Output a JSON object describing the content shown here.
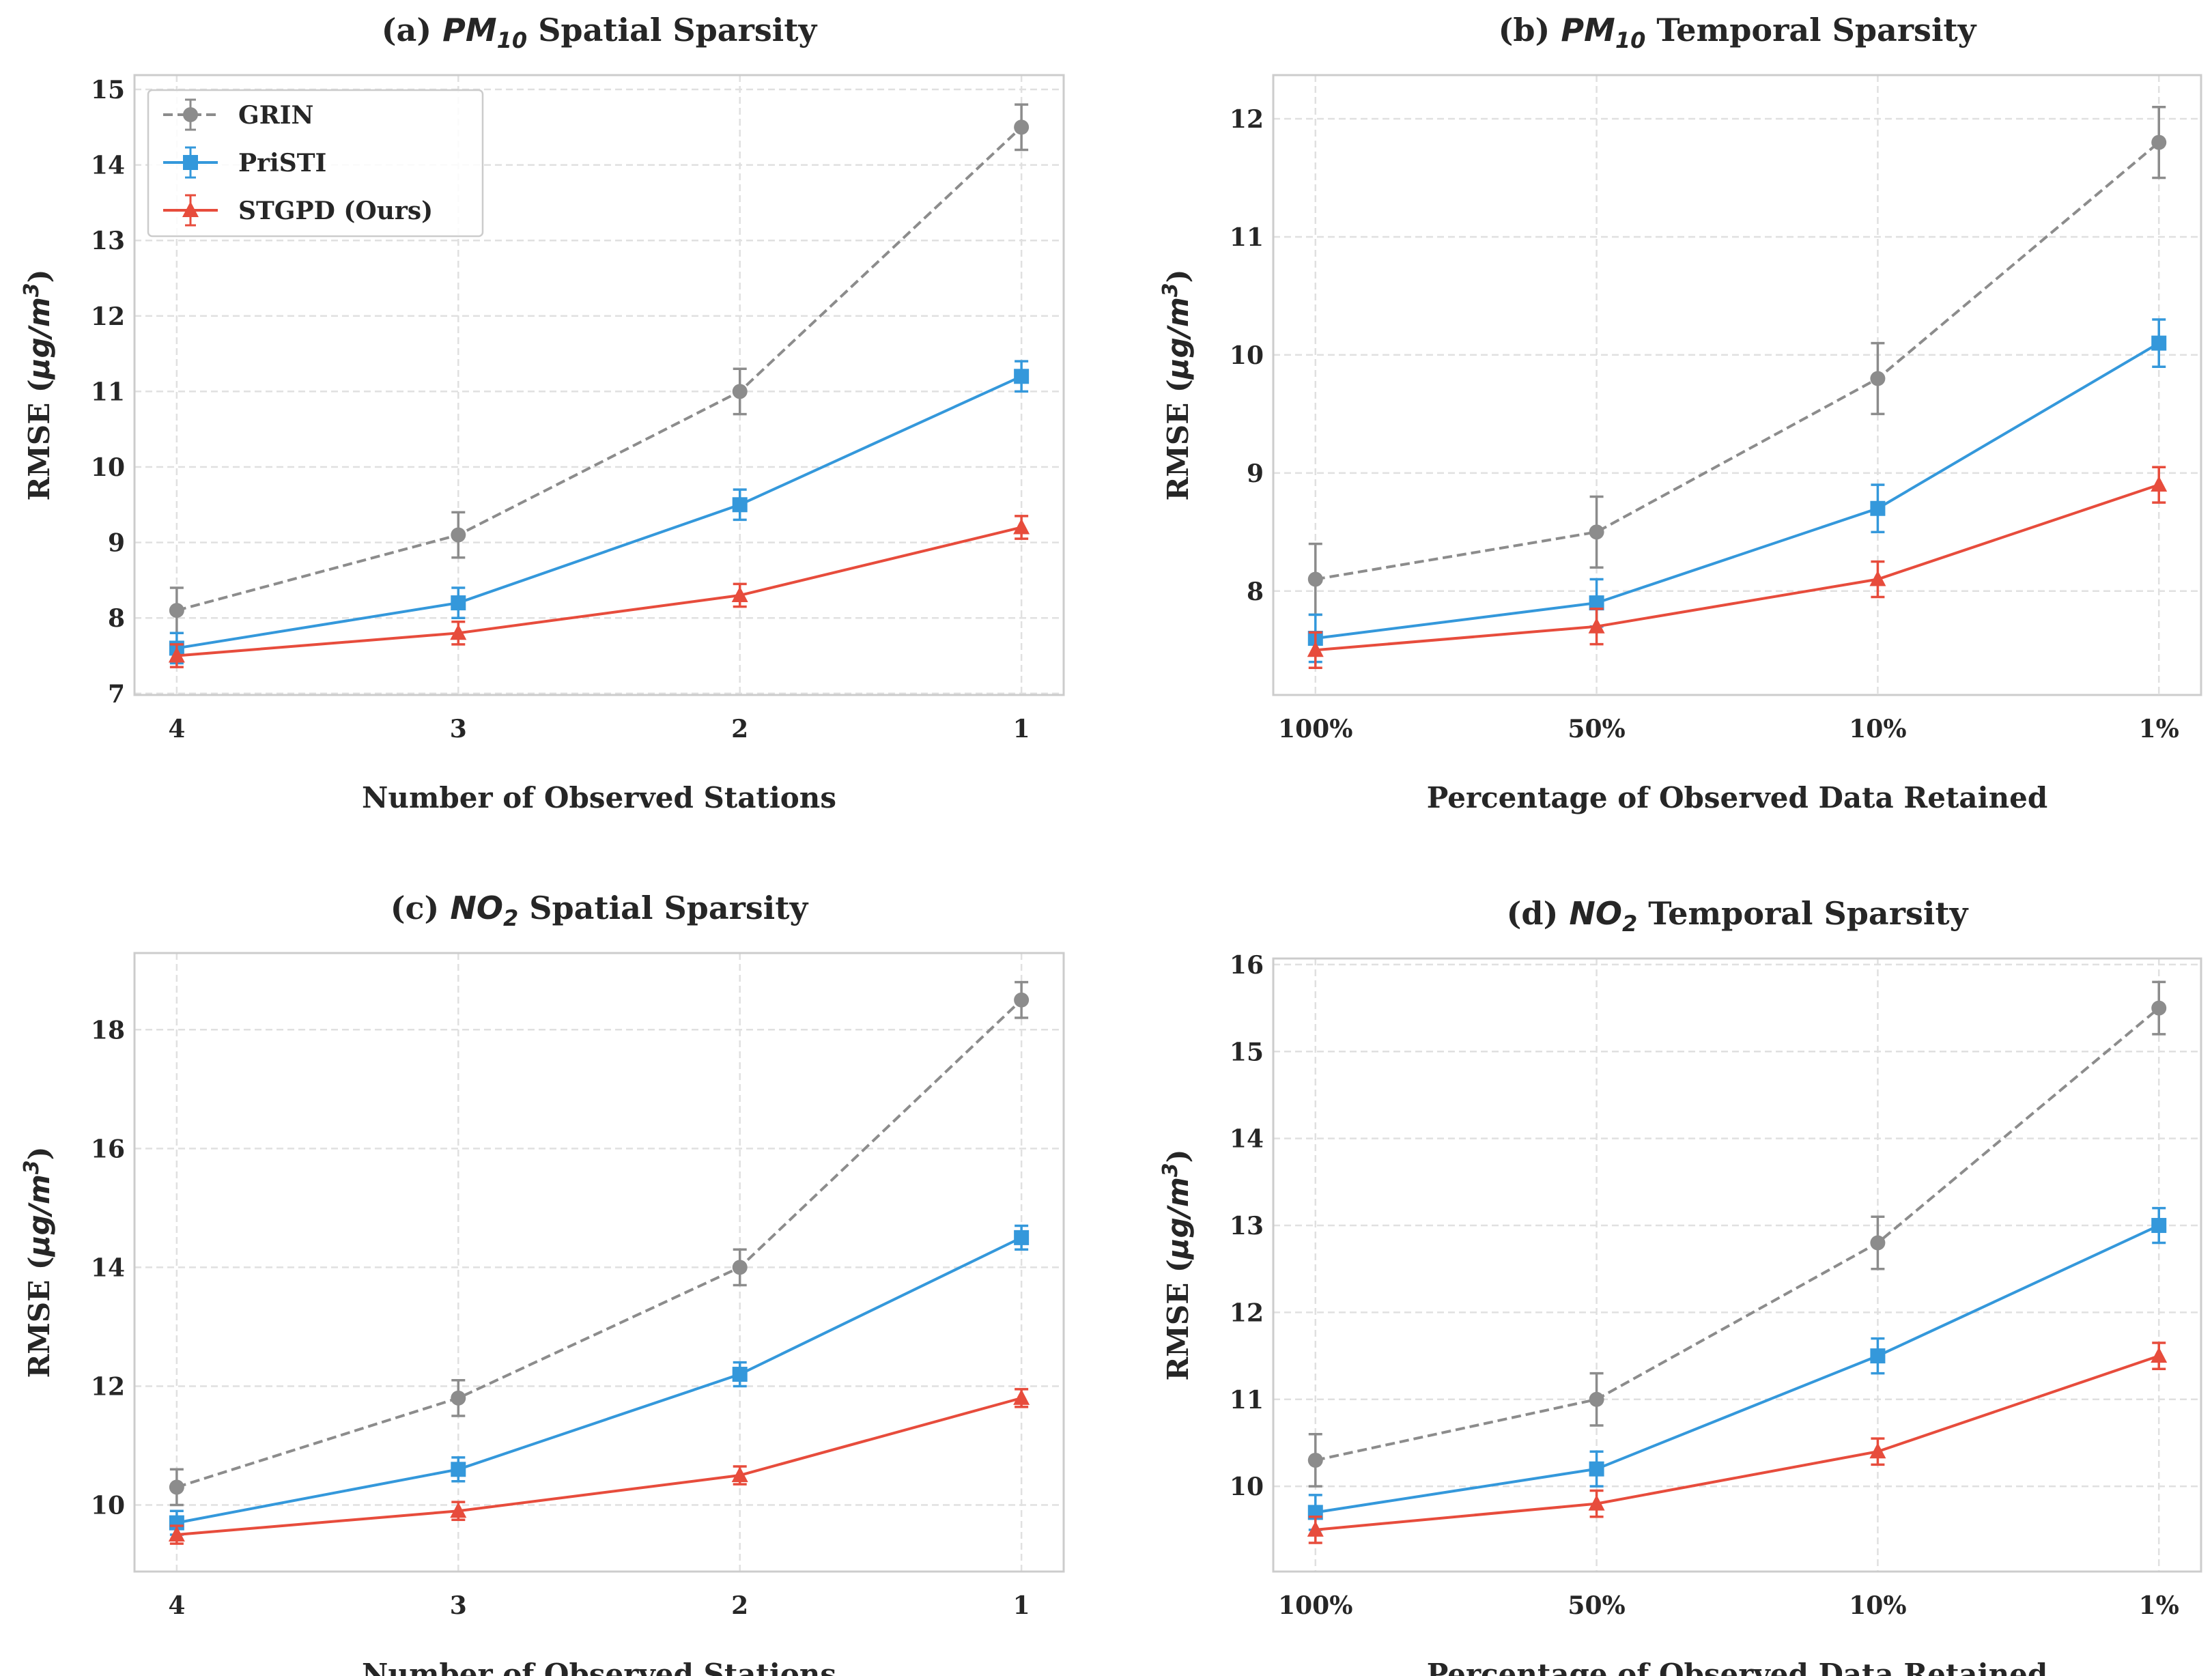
{
  "colors": {
    "GRIN": "#8c8c8c",
    "PriSTI": "#3498db",
    "STGPD (Ours)": "#e74c3c"
  },
  "legend": {
    "placement": "upper-left",
    "entries": [
      "GRIN",
      "PriSTI",
      "STGPD (Ours)"
    ]
  },
  "chart_data": [
    {
      "type": "line",
      "title": {
        "prefix": "(a) ",
        "math": "PM",
        "sub": "10",
        "suffix": " Spatial Sparsity"
      },
      "xlabel": "Number of Observed Stations",
      "ylabel": {
        "text": "RMSE (",
        "math": "μg/m",
        "sup": "3",
        "close": ")"
      },
      "categories": [
        "4",
        "3",
        "2",
        "1"
      ],
      "yticks": [
        7,
        8,
        9,
        10,
        11,
        12,
        13,
        14,
        15
      ],
      "ylim": [
        6.98,
        15.19
      ],
      "grid": true,
      "series": [
        {
          "name": "GRIN",
          "marker": "circle",
          "dashed": true,
          "values": [
            8.1,
            9.1,
            11.0,
            14.5
          ],
          "errors": [
            0.3,
            0.3,
            0.3,
            0.3
          ]
        },
        {
          "name": "PriSTI",
          "marker": "square",
          "dashed": false,
          "values": [
            7.6,
            8.2,
            9.5,
            11.2
          ],
          "errors": [
            0.2,
            0.2,
            0.2,
            0.2
          ]
        },
        {
          "name": "STGPD (Ours)",
          "marker": "triangle",
          "dashed": false,
          "values": [
            7.5,
            7.8,
            8.3,
            9.2
          ],
          "errors": [
            0.15,
            0.15,
            0.15,
            0.15
          ]
        }
      ]
    },
    {
      "type": "line",
      "title": {
        "prefix": "(b) ",
        "math": "PM",
        "sub": "10",
        "suffix": " Temporal Sparsity"
      },
      "xlabel": "Percentage of Observed Data Retained",
      "ylabel": {
        "text": "RMSE (",
        "math": "μg/m",
        "sup": "3",
        "close": ")"
      },
      "categories": [
        "100%",
        "50%",
        "10%",
        "1%"
      ],
      "yticks": [
        8,
        9,
        10,
        11,
        12
      ],
      "ylim": [
        7.12,
        12.37
      ],
      "grid": true,
      "series": [
        {
          "name": "GRIN",
          "marker": "circle",
          "dashed": true,
          "values": [
            8.1,
            8.5,
            9.8,
            11.8
          ],
          "errors": [
            0.3,
            0.3,
            0.3,
            0.3
          ]
        },
        {
          "name": "PriSTI",
          "marker": "square",
          "dashed": false,
          "values": [
            7.6,
            7.9,
            8.7,
            10.1
          ],
          "errors": [
            0.2,
            0.2,
            0.2,
            0.2
          ]
        },
        {
          "name": "STGPD (Ours)",
          "marker": "triangle",
          "dashed": false,
          "values": [
            7.5,
            7.7,
            8.1,
            8.9
          ],
          "errors": [
            0.15,
            0.15,
            0.15,
            0.15
          ]
        }
      ]
    },
    {
      "type": "line",
      "title": {
        "prefix": "(c) ",
        "math": "NO",
        "sub": "2",
        "suffix": " Spatial Sparsity"
      },
      "xlabel": "Number of Observed Stations",
      "ylabel": {
        "text": "RMSE (",
        "math": "μg/m",
        "sup": "3",
        "close": ")"
      },
      "categories": [
        "4",
        "3",
        "2",
        "1"
      ],
      "yticks": [
        10,
        12,
        14,
        16,
        18
      ],
      "ylim": [
        8.88,
        19.29
      ],
      "grid": true,
      "series": [
        {
          "name": "GRIN",
          "marker": "circle",
          "dashed": true,
          "values": [
            10.3,
            11.8,
            14.0,
            18.5
          ],
          "errors": [
            0.3,
            0.3,
            0.3,
            0.3
          ]
        },
        {
          "name": "PriSTI",
          "marker": "square",
          "dashed": false,
          "values": [
            9.7,
            10.6,
            12.2,
            14.5
          ],
          "errors": [
            0.2,
            0.2,
            0.2,
            0.2
          ]
        },
        {
          "name": "STGPD (Ours)",
          "marker": "triangle",
          "dashed": false,
          "values": [
            9.5,
            9.9,
            10.5,
            11.8
          ],
          "errors": [
            0.15,
            0.15,
            0.15,
            0.15
          ]
        }
      ]
    },
    {
      "type": "line",
      "title": {
        "prefix": "(d) ",
        "math": "NO",
        "sub": "2",
        "suffix": " Temporal Sparsity"
      },
      "xlabel": "Percentage of Observed Data Retained",
      "ylabel": {
        "text": "RMSE (",
        "math": "μg/m",
        "sup": "3",
        "close": ")"
      },
      "categories": [
        "100%",
        "50%",
        "10%",
        "1%"
      ],
      "yticks": [
        10,
        11,
        12,
        13,
        14,
        15,
        16
      ],
      "ylim": [
        9.02,
        16.07
      ],
      "grid": true,
      "series": [
        {
          "name": "GRIN",
          "marker": "circle",
          "dashed": true,
          "values": [
            10.3,
            11.0,
            12.8,
            15.5
          ],
          "errors": [
            0.3,
            0.3,
            0.3,
            0.3
          ]
        },
        {
          "name": "PriSTI",
          "marker": "square",
          "dashed": false,
          "values": [
            9.7,
            10.2,
            11.5,
            13.0
          ],
          "errors": [
            0.2,
            0.2,
            0.2,
            0.2
          ]
        },
        {
          "name": "STGPD (Ours)",
          "marker": "triangle",
          "dashed": false,
          "values": [
            9.5,
            9.8,
            10.4,
            11.5
          ],
          "errors": [
            0.15,
            0.15,
            0.15,
            0.15
          ]
        }
      ]
    }
  ]
}
